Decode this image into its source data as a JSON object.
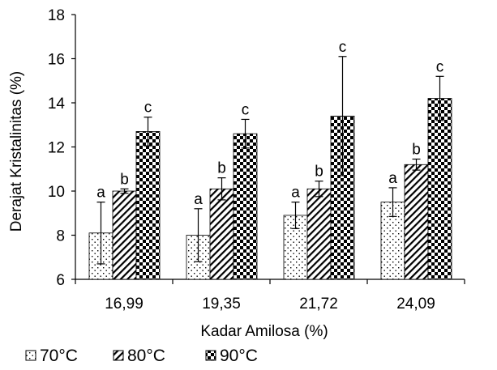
{
  "chart_data": {
    "type": "bar",
    "xlabel": "Kadar Amilosa (%)",
    "ylabel": "Derajat Kristalinitas (%)",
    "ylim": [
      6,
      18
    ],
    "yticks": [
      6,
      8,
      10,
      12,
      14,
      16,
      18
    ],
    "categories": [
      "16,99",
      "19,35",
      "21,72",
      "24,09"
    ],
    "legend_position": "bottom",
    "series": [
      {
        "name": "70°C",
        "pattern": "dots",
        "values": [
          8.1,
          8.0,
          8.9,
          9.5
        ],
        "errors": [
          1.4,
          1.2,
          0.6,
          0.65
        ],
        "labels": [
          "a",
          "a",
          "a",
          "a"
        ]
      },
      {
        "name": "80°C",
        "pattern": "diagonal",
        "values": [
          10.0,
          10.1,
          10.1,
          11.2
        ],
        "errors": [
          0.1,
          0.5,
          0.35,
          0.25
        ],
        "labels": [
          "b",
          "b",
          "b",
          "b"
        ]
      },
      {
        "name": "90°C",
        "pattern": "checker",
        "values": [
          12.7,
          12.6,
          13.4,
          14.2
        ],
        "errors": [
          0.65,
          0.65,
          2.7,
          1.0
        ],
        "labels": [
          "c",
          "c",
          "c",
          "c"
        ]
      }
    ]
  }
}
